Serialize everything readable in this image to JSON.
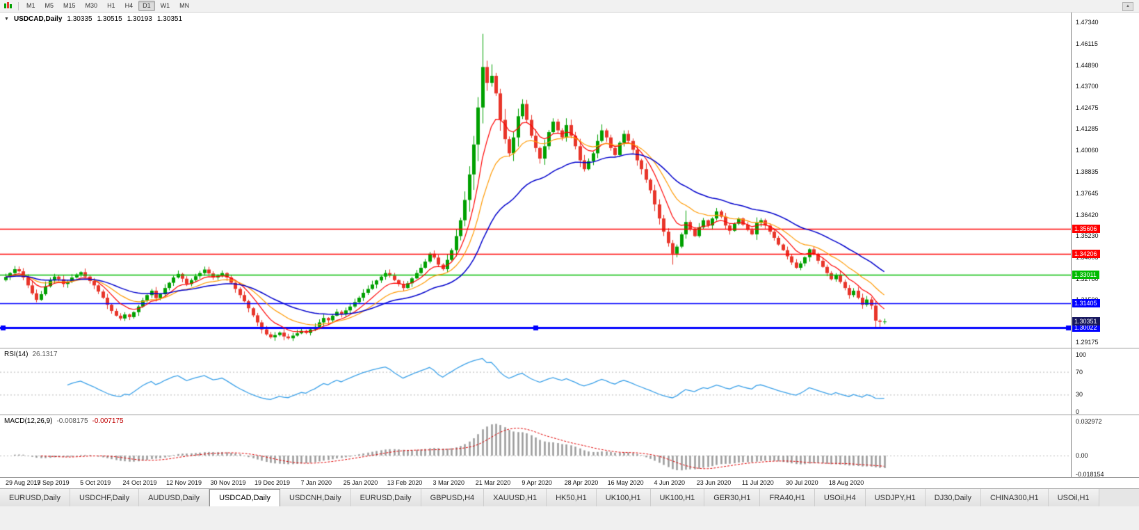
{
  "toolbar": {
    "periods": [
      "M1",
      "M5",
      "M15",
      "M30",
      "H1",
      "H4",
      "D1",
      "W1",
      "MN"
    ],
    "active_period": "D1"
  },
  "icons": {
    "collapse_arrow": "▼",
    "scroll_up_arrow": "▲"
  },
  "chart": {
    "symbol_title": "USDCAD,Daily",
    "ohlc": {
      "open": "1.30335",
      "high": "1.30515",
      "low": "1.30193",
      "close": "1.30351"
    },
    "price_ticks": [
      "1.47340",
      "1.46115",
      "1.44890",
      "1.43700",
      "1.42475",
      "1.41285",
      "1.40060",
      "1.38835",
      "1.37645",
      "1.36420",
      "1.35230",
      "1.34005",
      "1.32780",
      "1.31590",
      "1.29175"
    ],
    "current_price": {
      "label": "1.30351",
      "bg": "#16165E"
    },
    "level_labels": [
      {
        "label": "1.35606",
        "bg": "#FF0000"
      },
      {
        "label": "1.34206",
        "bg": "#FF0000"
      },
      {
        "label": "1.33011",
        "bg": "#00BB00"
      },
      {
        "label": "1.31405",
        "bg": "#0000FF"
      },
      {
        "label": "1.30022",
        "bg": "#0000FF"
      }
    ]
  },
  "rsi_panel": {
    "name": "RSI(14)",
    "value": "26.1317",
    "ticks": [
      "100",
      "70",
      "30",
      "0"
    ]
  },
  "macd_panel": {
    "name": "MACD(12,26,9)",
    "value_main": "-0.008175",
    "value_signal": "-0.007175",
    "ticks": [
      "0.032972",
      "0.00",
      "-0.018154"
    ]
  },
  "tab_bar": {
    "active_index": 3,
    "tabs": [
      "EURUSD,Daily",
      "USDCHF,Daily",
      "AUDUSD,Daily",
      "USDCAD,Daily",
      "USDCNH,Daily",
      "EURUSD,Daily",
      "GBPUSD,H4",
      "XAUUSD,H1",
      "HK50,H1",
      "UK100,H1",
      "UK100,H1",
      "GER30,H1",
      "FRA40,H1",
      "USOil,H4",
      "USDJPY,H1",
      "DJ30,Daily",
      "CHINA300,H1",
      "USOil,H1"
    ]
  },
  "chart_data": {
    "type": "candlestick",
    "title": "USDCAD,Daily",
    "ylim": [
      1.29175,
      1.4734
    ],
    "x_labels": [
      "29 Aug 2019",
      "17 Sep 2019",
      "5 Oct 2019",
      "24 Oct 2019",
      "12 Nov 2019",
      "30 Nov 2019",
      "19 Dec 2019",
      "7 Jan 2020",
      "25 Jan 2020",
      "13 Feb 2020",
      "3 Mar 2020",
      "21 Mar 2020",
      "9 Apr 2020",
      "28 Apr 2020",
      "16 May 2020",
      "4 Jun 2020",
      "23 Jun 2020",
      "11 Jul 2020",
      "30 Jul 2020",
      "18 Aug 2020"
    ],
    "bars_per_label": 10,
    "closes": [
      1.3288,
      1.331,
      1.3332,
      1.332,
      1.3285,
      1.324,
      1.3195,
      1.3158,
      1.319,
      1.3235,
      1.3268,
      1.329,
      1.3275,
      1.3248,
      1.3262,
      1.3285,
      1.3302,
      1.3315,
      1.329,
      1.3265,
      1.324,
      1.3205,
      1.317,
      1.313,
      1.3095,
      1.3068,
      1.3052,
      1.3075,
      1.306,
      1.3088,
      1.312,
      1.3155,
      1.3185,
      1.321,
      1.3168,
      1.319,
      1.3225,
      1.3255,
      1.3285,
      1.3305,
      1.3278,
      1.3248,
      1.327,
      1.3292,
      1.331,
      1.333,
      1.3308,
      1.3285,
      1.3295,
      1.331,
      1.3285,
      1.3255,
      1.322,
      1.3185,
      1.315,
      1.311,
      1.307,
      1.303,
      1.299,
      1.2962,
      1.2945,
      1.2958,
      1.2972,
      1.295,
      1.294,
      1.2955,
      1.2968,
      1.2982,
      1.297,
      1.299,
      1.3005,
      1.303,
      1.3055,
      1.3042,
      1.3068,
      1.309,
      1.3075,
      1.3098,
      1.312,
      1.3145,
      1.317,
      1.3198,
      1.322,
      1.3245,
      1.3268,
      1.329,
      1.331,
      1.3295,
      1.327,
      1.3248,
      1.3225,
      1.3252,
      1.328,
      1.331,
      1.334,
      1.3375,
      1.342,
      1.3398,
      1.3358,
      1.3332,
      1.3385,
      1.344,
      1.352,
      1.361,
      1.3725,
      1.387,
      1.404,
      1.425,
      1.448,
      1.439,
      1.443,
      1.433,
      1.418,
      1.407,
      1.399,
      1.408,
      1.42,
      1.427,
      1.418,
      1.409,
      1.402,
      1.396,
      1.403,
      1.411,
      1.417,
      1.412,
      1.408,
      1.415,
      1.409,
      1.403,
      1.395,
      1.39,
      1.3945,
      1.399,
      1.406,
      1.412,
      1.408,
      1.402,
      1.398,
      1.405,
      1.41,
      1.406,
      1.401,
      1.395,
      1.39,
      1.384,
      1.378,
      1.37,
      1.362,
      1.3545,
      1.348,
      1.342,
      1.346,
      1.353,
      1.36,
      1.356,
      1.352,
      1.357,
      1.361,
      1.358,
      1.362,
      1.366,
      1.363,
      1.358,
      1.355,
      1.359,
      1.362,
      1.3585,
      1.3555,
      1.353,
      1.3595,
      1.361,
      1.358,
      1.3545,
      1.351,
      1.3472,
      1.344,
      1.3405,
      1.337,
      1.334,
      1.3365,
      1.34,
      1.3445,
      1.3415,
      1.338,
      1.3345,
      1.331,
      1.3275,
      1.33,
      1.326,
      1.3225,
      1.3185,
      1.321,
      1.317,
      1.313,
      1.316,
      1.3125,
      1.304,
      1.30335,
      1.30351
    ],
    "wick_overrides": {
      "high": {
        "108": 1.4668,
        "110": 1.4495,
        "154": 1.3665
      },
      "low": {
        "64": 1.2932,
        "151": 1.3358,
        "197": 1.3002,
        "198": 1.3005,
        "199": 1.30193
      }
    },
    "last_candle": {
      "open": 1.30335,
      "high": 1.30515,
      "low": 1.30193,
      "close": 1.30351
    },
    "candle_colors": {
      "up": "#00A000",
      "down": "#E8352A"
    },
    "hlines": [
      {
        "price": 1.35606,
        "color": "#FF0000",
        "width": 1.3,
        "selected": false
      },
      {
        "price": 1.34206,
        "color": "#FF0000",
        "width": 1.3,
        "selected": false
      },
      {
        "price": 1.33011,
        "color": "#00BB00",
        "width": 1.3,
        "selected": false
      },
      {
        "price": 1.31405,
        "color": "#0000FF",
        "width": 1.3,
        "selected": false
      },
      {
        "price": 1.30022,
        "color": "#0000FF",
        "width": 3,
        "selected": true
      }
    ],
    "moving_averages": [
      {
        "period": 8,
        "color": "#FF0000"
      },
      {
        "period": 16,
        "color": "#FF9900"
      },
      {
        "period": 34,
        "color": "#0000CC"
      }
    ],
    "indicators": {
      "rsi": {
        "period": 14,
        "current": 26.1317,
        "levels": [
          70,
          30
        ],
        "range": [
          0,
          100
        ],
        "color": "#3AA0E8"
      },
      "macd": {
        "fast": 12,
        "slow": 26,
        "signal_period": 9,
        "current_main": -0.008175,
        "current_signal": -0.007175,
        "range": [
          -0.018154,
          0.032972
        ],
        "histogram_color": "#9C9C9C",
        "signal_color": "#E00000"
      }
    },
    "legend_position": "none",
    "grid": false
  }
}
